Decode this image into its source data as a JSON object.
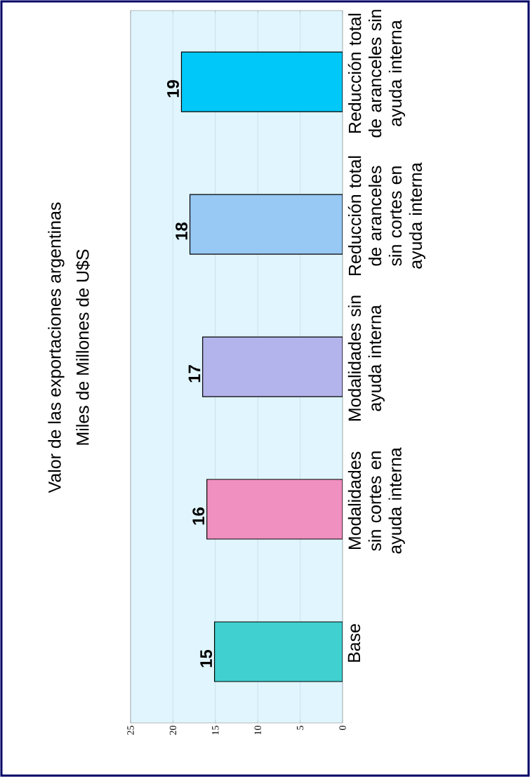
{
  "chart_data": {
    "type": "bar",
    "orientation": "horizontal",
    "title": "Valor de las exportaciones argentinas",
    "subtitle": "Miles de Millones de U$S",
    "categories": [
      "Reducción total de aranceles sin ayuda interna",
      "Reducción total de aranceles sin cortes en ayuda interna",
      "Modalidades sin ayuda interna",
      "Modalidades sin cortes en ayuda interna",
      "Base"
    ],
    "values": [
      19,
      18,
      16.5,
      16,
      15.1
    ],
    "value_labels": [
      "19",
      "18",
      "17",
      "16",
      "15"
    ],
    "colors": [
      "#00c8f8",
      "#98c8f4",
      "#b4b4ec",
      "#f090c0",
      "#40d0d0"
    ],
    "xlim": [
      25,
      0
    ],
    "xticks": [
      0,
      5,
      10,
      15,
      20,
      25
    ],
    "grid": "x"
  }
}
